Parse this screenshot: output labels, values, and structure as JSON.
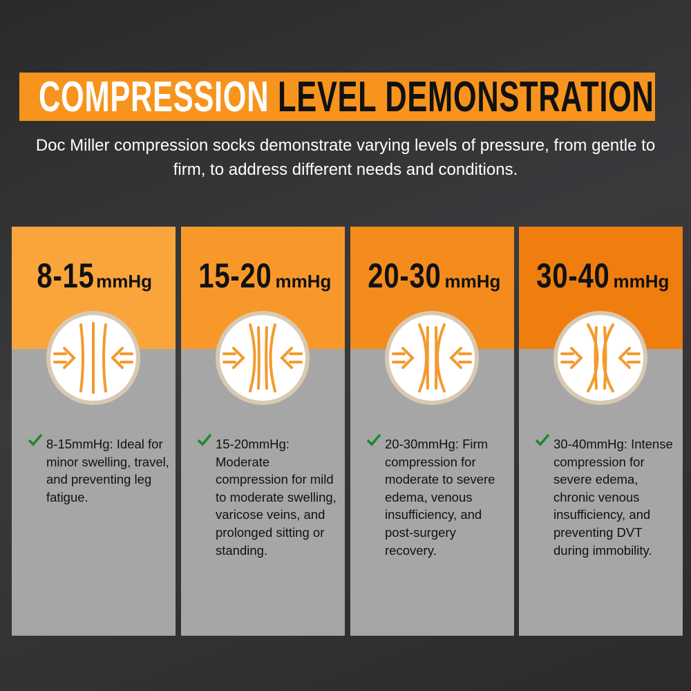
{
  "header": {
    "title_light": "COMPRESSION",
    "title_dark": "LEVEL DEMONSTRATION",
    "subtitle": "Doc Miller compression socks demonstrate varying levels of pressure, from gentle to firm, to address different needs and conditions."
  },
  "cards": [
    {
      "range": "8-15",
      "unit": "mmHg",
      "description": "8-15mmHg: Ideal for minor swelling, travel, and preventing leg fatigue."
    },
    {
      "range": "15-20",
      "unit": "mmHg",
      "description": "15-20mmHg: Moderate compression for mild to moderate swelling, varicose veins, and prolonged sitting or standing."
    },
    {
      "range": "20-30",
      "unit": "mmHg",
      "description": "20-30mmHg: Firm compression for moderate to severe edema, venous insufficiency, and post-surgery recovery."
    },
    {
      "range": "30-40",
      "unit": "mmHg",
      "description": "30-40mmHg: Intense compression for severe edema, chronic venous insufficiency, and preventing DVT during immobility."
    }
  ]
}
